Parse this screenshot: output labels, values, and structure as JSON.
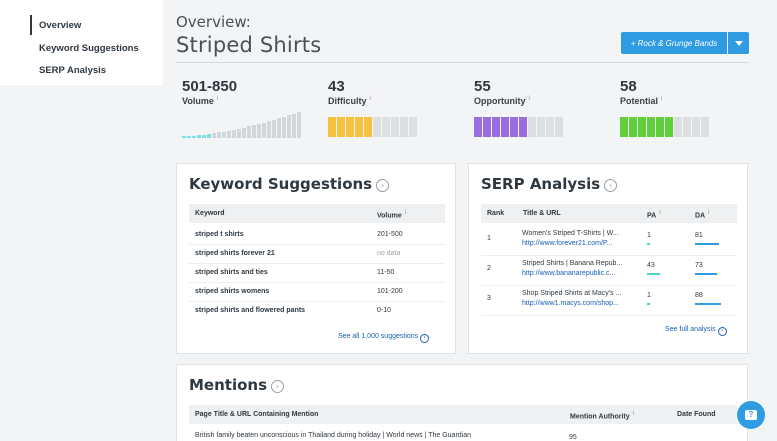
{
  "sidebar": {
    "items": [
      {
        "label": "Overview"
      },
      {
        "label": "Keyword Suggestions"
      },
      {
        "label": "SERP Analysis"
      }
    ]
  },
  "header": {
    "overview_label": "Overview:",
    "title": "Striped Shirts",
    "list_button": "+ Rock & Grunge Bands"
  },
  "metrics": {
    "volume": {
      "value": "501-850",
      "label": "Volume"
    },
    "difficulty": {
      "value": "43",
      "label": "Difficulty",
      "color": "#f5c13f",
      "filled": 5
    },
    "opportunity": {
      "value": "55",
      "label": "Opportunity",
      "color": "#9b6ee0",
      "filled": 6
    },
    "potential": {
      "value": "58",
      "label": "Potential",
      "color": "#5fcf3c",
      "filled": 6
    },
    "total_segments": 10
  },
  "keyword_suggestions": {
    "title": "Keyword Suggestions",
    "col_keyword": "Keyword",
    "col_volume": "Volume",
    "rows": [
      {
        "keyword": "striped t shirts",
        "volume": "201-500"
      },
      {
        "keyword": "striped shirts forever 21",
        "volume": "no data"
      },
      {
        "keyword": "striped shirts and ties",
        "volume": "11-50"
      },
      {
        "keyword": "striped shirts womens",
        "volume": "101-200"
      },
      {
        "keyword": "striped shirts and flowered pants",
        "volume": "0-10"
      }
    ],
    "see_all": "See all 1,000 suggestions"
  },
  "serp": {
    "title": "SERP Analysis",
    "col_rank": "Rank",
    "col_title": "Title & URL",
    "col_pa": "PA",
    "col_da": "DA",
    "rows": [
      {
        "rank": "1",
        "title": "Women's Striped T-Shirts | W...",
        "url": "http://www.forever21.com/P...",
        "pa": "1",
        "da": "81",
        "pa_pct": 0.01,
        "da_pct": 0.81
      },
      {
        "rank": "2",
        "title": "Striped Shirts | Banana Repub...",
        "url": "http://www.bananarepublic.c...",
        "pa": "43",
        "da": "73",
        "pa_pct": 0.43,
        "da_pct": 0.73
      },
      {
        "rank": "3",
        "title": "Shop Striped Shirts at Macy's ...",
        "url": "http://www1.macys.com/shop...",
        "pa": "1",
        "da": "88",
        "pa_pct": 0.01,
        "da_pct": 0.88
      }
    ],
    "see_full": "See full analysis"
  },
  "mentions": {
    "title": "Mentions",
    "col_page": "Page Title & URL Containing Mention",
    "col_authority": "Mention Authority",
    "col_date": "Date Found",
    "row_title": "British family beaten unconscious in Thailand during holiday | World news | The Guardian",
    "row_authority": "95"
  },
  "colors": {
    "accent": "#2f9be3",
    "bar_teal": "#4fd1c5",
    "bar_blue": "#2f9be3",
    "spark": "#7fe0e6"
  }
}
